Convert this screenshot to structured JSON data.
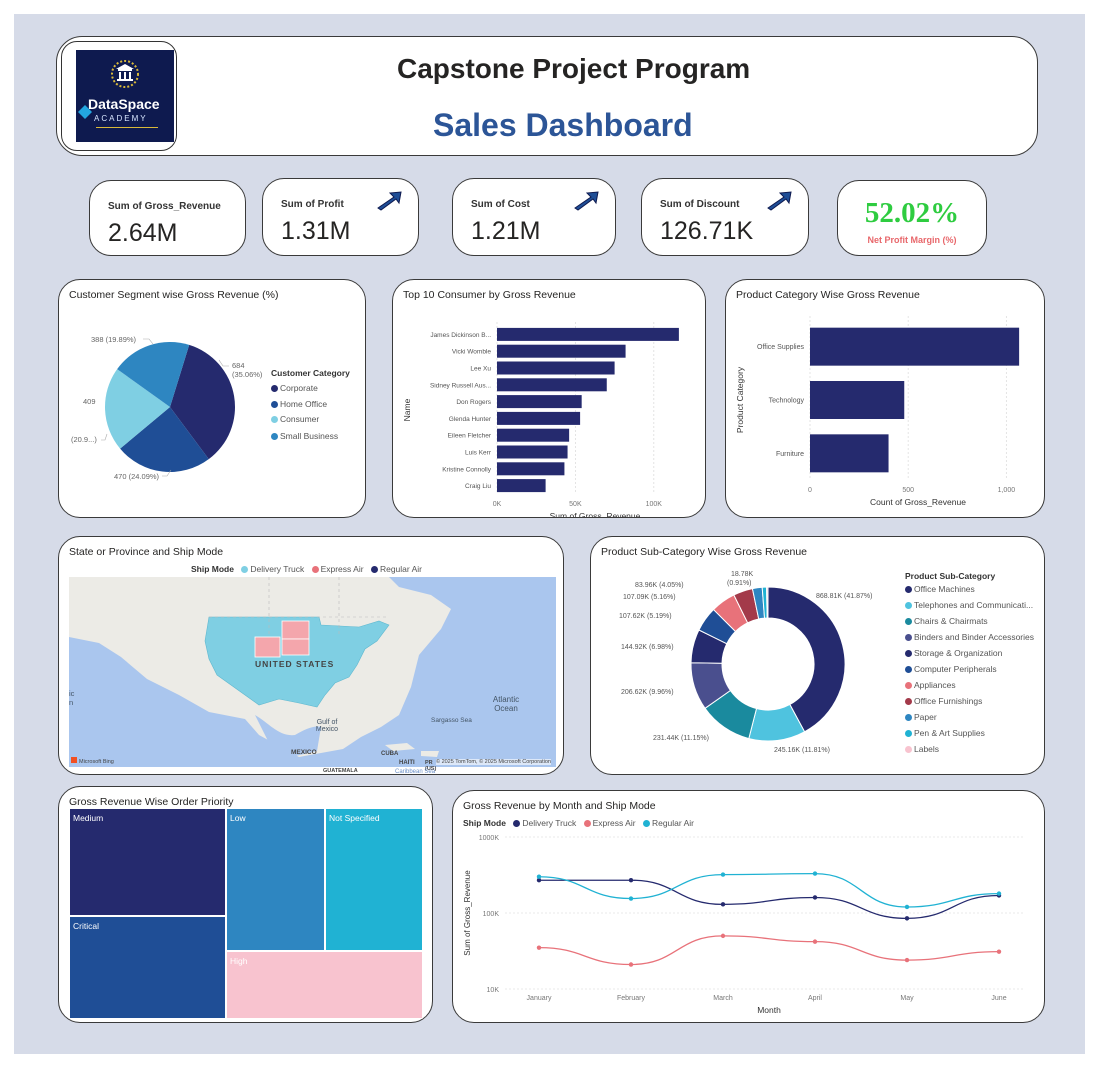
{
  "header": {
    "logo": {
      "brand": "DataSpace",
      "sub": "ACADEMY",
      "icon": "institution-laurel-icon"
    },
    "title": "Capstone Project Program",
    "subtitle": "Sales Dashboard"
  },
  "kpis": [
    {
      "label": "Sum of Gross_Revenue",
      "value": "2.64M",
      "arrow": false
    },
    {
      "label": "Sum of Profit",
      "value": "1.31M",
      "arrow": true
    },
    {
      "label": "Sum of Cost",
      "value": "1.21M",
      "arrow": true
    },
    {
      "label": "Sum of Discount",
      "value": "126.71K",
      "arrow": true
    }
  ],
  "net_margin": {
    "value": "52.02%",
    "label": "Net Profit Margin (%)",
    "color": "#2ecc40",
    "label_color": "#e8676b"
  },
  "colors": {
    "navy": "#252a6e",
    "blue": "#1f4e96",
    "lightblue": "#7fcfe3",
    "midblue": "#2e86c1",
    "teal": "#1a8a9e",
    "salmon": "#e8727a",
    "pink": "#f8c3cf",
    "title_blue": "#2c5597",
    "cyan": "#20b2d3"
  },
  "segment_pie": {
    "title": "Customer Segment wise Gross Revenue (%)",
    "legend_title": "Customer Category",
    "legend": [
      "Corporate",
      "Home Office",
      "Consumer",
      "Small Business"
    ],
    "labels": {
      "corporate": "684",
      "corporate_pct": "(35.06%)",
      "home_office": "470 (24.09%)",
      "consumer": "409",
      "consumer_pct": "(20.9...)",
      "small_business": "388 (19.89%)"
    }
  },
  "top10": {
    "title": "Top 10 Consumer by Gross Revenue",
    "ylabel": "Name",
    "xlabel": "Sum of Gross_Revenue",
    "ticks": [
      "0K",
      "50K",
      "100K"
    ]
  },
  "category": {
    "title": "Product Category Wise Gross Revenue",
    "ylabel": "Product Category",
    "xlabel": "Count of Gross_Revenue",
    "ticks": [
      "0",
      "500",
      "1,000"
    ]
  },
  "map": {
    "title": "State or Province and Ship Mode",
    "legend_title": "Ship Mode",
    "legend": [
      "Delivery Truck",
      "Express Air",
      "Regular Air"
    ],
    "labels": {
      "country": "UNITED STATES",
      "ocean": "Atlantic Ocean",
      "sea": "Sargasso Sea",
      "gulf": "Gulf of Mexico",
      "mexico": "MEXICO",
      "cuba": "CUBA",
      "haiti": "HAITI",
      "pr": "PR (US)",
      "guatemala": "GUATEMALA",
      "caribbean": "Caribbean Sea",
      "edge": "ic n",
      "attribution": "© 2025 TomTom, © 2025 Microsoft Corporation",
      "bing": "Microsoft Bing"
    }
  },
  "subcat": {
    "title": "Product Sub-Category Wise Gross Revenue",
    "legend_title": "Product Sub-Category",
    "legend": [
      "Office Machines",
      "Telephones and Communicati...",
      "Chairs & Chairmats",
      "Binders and Binder Accessories",
      "Storage & Organization",
      "Computer Peripherals",
      "Appliances",
      "Office Furnishings",
      "Paper",
      "Pen & Art Supplies",
      "Labels"
    ]
  },
  "treemap": {
    "title": "Gross Revenue Wise Order Priority",
    "cells": {
      "medium": "Medium",
      "low": "Low",
      "not_specified": "Not Specified",
      "critical": "Critical",
      "high": "High"
    }
  },
  "monthly": {
    "title": "Gross Revenue by Month and Ship Mode",
    "legend_title": "Ship Mode",
    "legend": [
      "Delivery Truck",
      "Express Air",
      "Regular Air"
    ],
    "ylabel": "Sum of Gross_Revenue",
    "xlabel": "Month",
    "yticks": [
      "1000K",
      "100K",
      "10K"
    ]
  },
  "chart_data": [
    {
      "type": "pie",
      "title": "Customer Segment wise Gross Revenue (%)",
      "labels": [
        "Corporate",
        "Home Office",
        "Consumer",
        "Small Business"
      ],
      "values": [
        684,
        470,
        409,
        388
      ],
      "percent": [
        35.06,
        24.09,
        20.96,
        19.89
      ]
    },
    {
      "type": "bar",
      "orientation": "horizontal",
      "title": "Top 10 Consumer by Gross Revenue",
      "categories": [
        "James Dickinson B...",
        "Vicki Womble",
        "Lee Xu",
        "Sidney Russell Aus...",
        "Don Rogers",
        "Glenda Hunter",
        "Eileen Fletcher",
        "Luis Kerr",
        "Kristine Connolly",
        "Craig Liu"
      ],
      "values": [
        116000,
        82000,
        75000,
        70000,
        54000,
        53000,
        46000,
        45000,
        43000,
        31000
      ],
      "xlabel": "Sum of Gross_Revenue",
      "ylabel": "Name",
      "xlim": [
        0,
        125000
      ]
    },
    {
      "type": "bar",
      "orientation": "horizontal",
      "title": "Product Category Wise Gross Revenue",
      "categories": [
        "Office Supplies",
        "Technology",
        "Furniture"
      ],
      "values": [
        1065,
        480,
        400
      ],
      "xlabel": "Count of Gross_Revenue",
      "ylabel": "Product Category",
      "xlim": [
        0,
        1100
      ]
    },
    {
      "type": "pie",
      "variant": "donut",
      "title": "Product Sub-Category Wise Gross Revenue",
      "labels": [
        "Office Machines",
        "Telephones and Communicati...",
        "Chairs & Chairmats",
        "Binders and Binder Accessories",
        "Storage & Organization",
        "Computer Peripherals",
        "Appliances",
        "Office Furnishings",
        "Paper",
        "Pen & Art Supplies",
        "Labels"
      ],
      "values": [
        868.81,
        245.16,
        231.44,
        206.62,
        144.92,
        107.62,
        107.09,
        83.96,
        42,
        18.78,
        6
      ],
      "data_labels": [
        "868.81K (41.87%)",
        "245.16K (11.81%)",
        "231.44K (11.15%)",
        "206.62K (9.96%)",
        "144.92K (6.98%)",
        "107.62K (5.19%)",
        "107.09K (5.16%)",
        "83.96K (4.05%)",
        "",
        "18.78K (0.91%)",
        ""
      ],
      "colors": [
        "#252a6e",
        "#4fc3df",
        "#1a8a9e",
        "#4a4f8e",
        "#252a6e",
        "#1f4e96",
        "#e8727a",
        "#a33a4a",
        "#2e86c1",
        "#20b2d3",
        "#f8c3cf"
      ]
    },
    {
      "type": "treemap",
      "title": "Gross Revenue Wise Order Priority",
      "labels": [
        "Medium",
        "Critical",
        "Low",
        "Not Specified",
        "High"
      ],
      "values": [
        557000,
        535000,
        525000,
        525000,
        500000
      ]
    },
    {
      "type": "line",
      "title": "Gross Revenue by Month and Ship Mode",
      "x": [
        "January",
        "February",
        "March",
        "April",
        "May",
        "June"
      ],
      "yscale": "log",
      "ylim": [
        10000,
        1000000
      ],
      "ylabel": "Sum of Gross_Revenue",
      "xlabel": "Month",
      "series": [
        {
          "name": "Delivery Truck",
          "values": [
            270000,
            270000,
            130000,
            160000,
            85000,
            170000
          ],
          "color": "#252a6e"
        },
        {
          "name": "Express Air",
          "values": [
            35000,
            21000,
            50000,
            42000,
            24000,
            31000
          ],
          "color": "#e8727a"
        },
        {
          "name": "Regular Air",
          "values": [
            300000,
            155000,
            320000,
            330000,
            120000,
            180000
          ],
          "color": "#20b2d3"
        }
      ]
    }
  ]
}
